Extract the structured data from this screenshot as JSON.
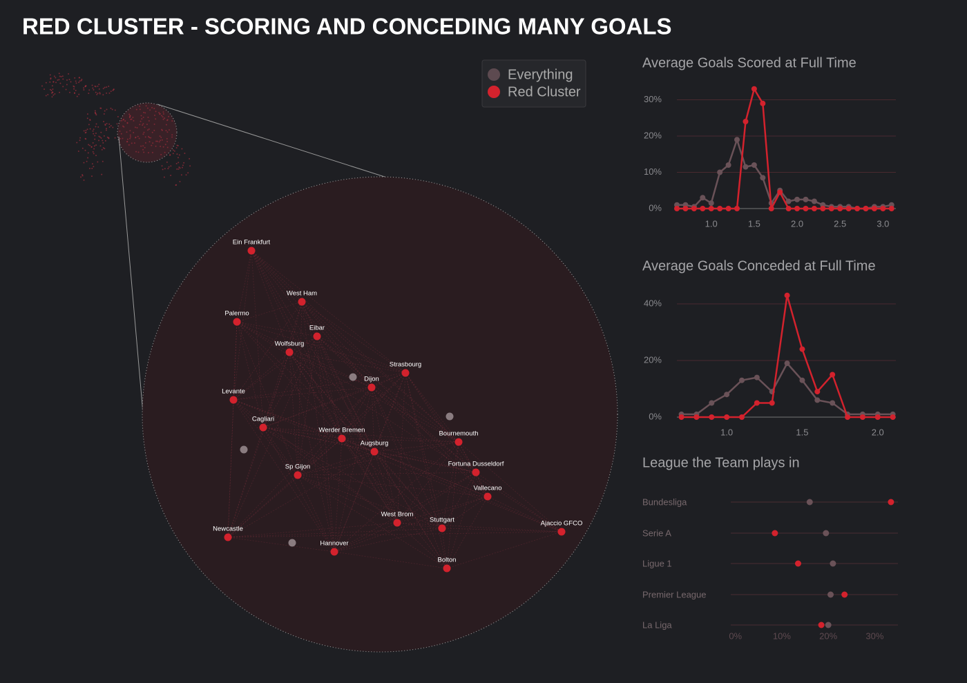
{
  "title": "RED CLUSTER - SCORING AND CONCEDING MANY GOALS",
  "network": {
    "nodes": [
      "Ein Frankfurt",
      "West Ham",
      "Palermo",
      "Eibar",
      "Wolfsburg",
      "Strasbourg",
      "Dijon",
      "Levante",
      "Cagliari",
      "Werder Bremen",
      "Bournemouth",
      "Augsburg",
      "Fortuna Dusseldorf",
      "Sp Gijon",
      "Vallecano",
      "West Brom",
      "Stuttgart",
      "Newcastle",
      "Ajaccio GFCO",
      "Hannover",
      "Bolton"
    ]
  },
  "chart_data": [
    {
      "type": "line",
      "title": "Average Goals Scored at Full Time",
      "x": [
        0.6,
        0.7,
        0.8,
        0.9,
        1.0,
        1.1,
        1.2,
        1.3,
        1.4,
        1.5,
        1.6,
        1.7,
        1.8,
        1.9,
        2.0,
        2.1,
        2.2,
        2.3,
        2.4,
        2.5,
        2.6,
        2.7,
        2.8,
        2.9,
        3.0,
        3.1
      ],
      "xlim": [
        0.6,
        3.15
      ],
      "xticks": [
        {
          "value": 1,
          "label": "1.0"
        },
        {
          "value": 1.5,
          "label": "1.5"
        },
        {
          "value": 2,
          "label": "2.0"
        },
        {
          "value": 2.5,
          "label": "2.5"
        },
        {
          "value": 3,
          "label": "3.0"
        }
      ],
      "ylim": [
        0,
        34
      ],
      "yticks": [
        {
          "value": 0,
          "label": "0%"
        },
        {
          "value": 10,
          "label": "10%"
        },
        {
          "value": 20,
          "label": "20%"
        },
        {
          "value": 30,
          "label": "30%"
        }
      ],
      "series": [
        {
          "name": "Everything",
          "color": "#6a5258",
          "values": [
            1,
            1,
            0.5,
            3,
            1.5,
            10,
            12,
            19,
            11.5,
            12,
            8.5,
            1.5,
            5,
            2,
            2.5,
            2.5,
            2,
            1,
            0.5,
            0.5,
            0.5,
            0,
            0,
            0.5,
            0.5,
            1
          ]
        },
        {
          "name": "Red Cluster",
          "color": "#d3222d",
          "values": [
            0,
            0,
            0,
            0,
            0,
            0,
            0,
            0,
            24,
            33,
            29,
            0,
            4.5,
            0,
            0,
            0,
            0,
            0,
            0,
            0,
            0,
            0,
            0,
            0,
            0,
            0
          ]
        }
      ]
    },
    {
      "type": "line",
      "title": "Average Goals Conceded at Full Time",
      "x": [
        0.7,
        0.8,
        0.9,
        1.0,
        1.1,
        1.2,
        1.3,
        1.4,
        1.5,
        1.6,
        1.7,
        1.8,
        1.9,
        2.0,
        2.1
      ],
      "xlim": [
        0.67,
        2.12
      ],
      "xticks": [
        {
          "value": 1,
          "label": "1.0"
        },
        {
          "value": 1.5,
          "label": "1.5"
        },
        {
          "value": 2,
          "label": "2.0"
        }
      ],
      "ylim": [
        0,
        45
      ],
      "yticks": [
        {
          "value": 0,
          "label": "0%"
        },
        {
          "value": 20,
          "label": "20%"
        },
        {
          "value": 40,
          "label": "40%"
        }
      ],
      "series": [
        {
          "name": "Everything",
          "color": "#6a5258",
          "values": [
            1,
            1,
            5,
            8,
            13,
            14,
            9,
            19,
            13,
            6,
            5,
            1,
            1,
            1,
            1
          ]
        },
        {
          "name": "Red Cluster",
          "color": "#d3222d",
          "values": [
            0,
            0,
            0,
            0,
            0,
            5,
            5,
            43,
            24,
            9,
            15,
            0,
            0,
            0,
            0
          ]
        }
      ]
    },
    {
      "type": "dot",
      "title": "League the Team plays in",
      "categories": [
        "Bundesliga",
        "Serie A",
        "Ligue 1",
        "Premier League",
        "La Liga"
      ],
      "xlim": [
        -1,
        35
      ],
      "xticks": [
        {
          "value": 0,
          "label": "0%"
        },
        {
          "value": 10,
          "label": "10%"
        },
        {
          "value": 20,
          "label": "20%"
        },
        {
          "value": 30,
          "label": "30%"
        }
      ],
      "series": [
        {
          "name": "Everything",
          "color": "#6a5258",
          "values": [
            16,
            19.5,
            21,
            20.5,
            20
          ]
        },
        {
          "name": "Red Cluster",
          "color": "#d3222d",
          "values": [
            33.5,
            8.5,
            13.5,
            23.5,
            18.5
          ]
        }
      ]
    }
  ]
}
